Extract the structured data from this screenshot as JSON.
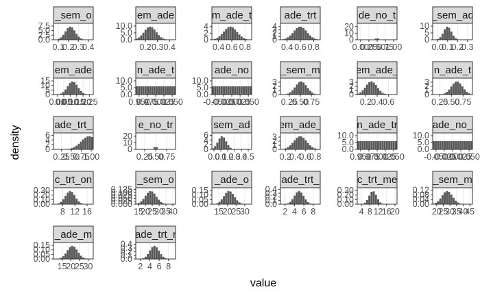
{
  "chart_data": {
    "type": "bar",
    "title": "",
    "xlabel": "value",
    "ylabel": "density",
    "grid": true,
    "colors": {
      "bar": "#595959",
      "strip_bg": "#d9d9d9",
      "panel_border": "#333333",
      "panel_bg": "#ffffff",
      "grid": "#ebebeb"
    },
    "panels": [
      {
        "strip": "_sem_o",
        "xticks": [
          "0.1",
          "0.2",
          "0.3",
          "0.4"
        ],
        "xlim": [
          0.05,
          0.45
        ],
        "yticks": [
          "0.0",
          "2.5",
          "5.0",
          "7.5"
        ],
        "ylim": [
          0,
          9
        ],
        "peak": 0.22,
        "spread": 0.05,
        "height": 0.8
      },
      {
        "strip": "em_ade",
        "xticks": [
          "0.2",
          "0.3",
          "0.4"
        ],
        "xlim": [
          0.12,
          0.45
        ],
        "yticks": [
          "0.0",
          "5.0",
          "10.0"
        ],
        "ylim": [
          0,
          12
        ],
        "peak": 0.24,
        "spread": 0.05,
        "height": 0.8
      },
      {
        "strip": "m_ade_t",
        "xticks": [
          "0.4",
          "0.6",
          "0.8"
        ],
        "xlim": [
          0.3,
          0.9
        ],
        "yticks": [
          "0",
          "2",
          "4"
        ],
        "ylim": [
          0,
          5
        ],
        "peak": 0.58,
        "spread": 0.1,
        "height": 0.8
      },
      {
        "strip": "ade_trt",
        "xticks": [
          "0.4",
          "0.6",
          "0.8"
        ],
        "xlim": [
          0.3,
          0.9
        ],
        "yticks": [
          "0",
          "1",
          "2",
          "3",
          "4"
        ],
        "ylim": [
          0,
          5
        ],
        "peak": 0.6,
        "spread": 0.1,
        "height": 0.8
      },
      {
        "strip": "de_no_t",
        "xticks": [
          "0.00",
          "0.25",
          "0.50",
          "0.75",
          "1.00"
        ],
        "xlim": [
          -0.1,
          1.1
        ],
        "yticks": [
          "0",
          "10",
          "20"
        ],
        "ylim": [
          0,
          25
        ],
        "peak": 0.5,
        "spread": 0.02,
        "height": 0.3
      },
      {
        "strip": "_sem_ad",
        "xticks": [
          "0.0",
          "0.1",
          "0.2",
          "0.3"
        ],
        "xlim": [
          -0.05,
          0.35
        ],
        "yticks": [
          "0",
          "5",
          "10"
        ],
        "ylim": [
          0,
          12
        ],
        "peak": 0.1,
        "spread": 0.04,
        "height": 0.8
      },
      {
        "strip": "em_ade",
        "xticks": [
          "0.00",
          "0.05",
          "0.10",
          "0.15",
          "0.20",
          "0.25"
        ],
        "xlim": [
          -0.03,
          0.28
        ],
        "yticks": [
          "0",
          "5",
          "10",
          "15"
        ],
        "ylim": [
          0,
          18
        ],
        "peak": 0.12,
        "spread": 0.04,
        "height": 0.8
      },
      {
        "strip": "n_ade_t",
        "xticks": [
          "0.950",
          "0.975",
          "1.000",
          "1.025",
          "1.050"
        ],
        "xlim": [
          0.94,
          1.06
        ],
        "yticks": [
          "0.0",
          "5.0",
          "10.0"
        ],
        "ylim": [
          0,
          12
        ],
        "peak": 1.0,
        "spread": 0.0,
        "height": 0.5
      },
      {
        "strip": "ade_no",
        "xticks": [
          "-0.050",
          "-0.025",
          "0.000",
          "0.025",
          "0.050"
        ],
        "xlim": [
          -0.06,
          0.06
        ],
        "yticks": [
          "0.0",
          "5.0",
          "10.0"
        ],
        "ylim": [
          0,
          12
        ],
        "peak": 0.0,
        "spread": 0.0,
        "height": 0.5
      },
      {
        "strip": "_sem_m",
        "xticks": [
          "0.25",
          "0.50",
          "0.75"
        ],
        "xlim": [
          0.05,
          0.95
        ],
        "yticks": [
          "0",
          "1",
          "2",
          "3"
        ],
        "ylim": [
          0,
          4
        ],
        "peak": 0.52,
        "spread": 0.13,
        "height": 0.8
      },
      {
        "strip": "em_ade_",
        "xticks": [
          "0.2",
          "0.4",
          "0.6"
        ],
        "xlim": [
          0.05,
          0.75
        ],
        "yticks": [
          "0",
          "1",
          "2",
          "3"
        ],
        "ylim": [
          0,
          4
        ],
        "peak": 0.3,
        "spread": 0.1,
        "height": 0.8
      },
      {
        "strip": "n_ade_t",
        "xticks": [
          "0.25",
          "0.50",
          "0.75"
        ],
        "xlim": [
          0.1,
          0.95
        ],
        "yticks": [
          "0",
          "1",
          "2",
          "3"
        ],
        "ylim": [
          0,
          4
        ],
        "peak": 0.62,
        "spread": 0.12,
        "height": 0.8
      },
      {
        "strip": "ade_trt_",
        "xticks": [
          "0.25",
          "0.50",
          "0.75",
          "1.00"
        ],
        "xlim": [
          0.05,
          1.05
        ],
        "yticks": [
          "0",
          "2",
          "4",
          "6"
        ],
        "ylim": [
          0,
          7
        ],
        "peak": 0.95,
        "spread": 0.2,
        "height": 0.8
      },
      {
        "strip": "e_no_tr",
        "xticks": [
          "0.25",
          "0.50",
          "0.75"
        ],
        "xlim": [
          0.05,
          0.95
        ],
        "yticks": [
          "0",
          "10",
          "20"
        ],
        "ylim": [
          0,
          25
        ],
        "peak": 0.5,
        "spread": 0.02,
        "height": 0.3
      },
      {
        "strip": "sem_ad",
        "xticks": [
          "0.0",
          "0.1",
          "0.2",
          "0.3",
          "0.4",
          "0.5"
        ],
        "xlim": [
          -0.03,
          0.55
        ],
        "yticks": [
          "0",
          "2",
          "4",
          "6"
        ],
        "ylim": [
          0,
          7
        ],
        "peak": 0.12,
        "spread": 0.06,
        "height": 0.8
      },
      {
        "strip": "em_ade_",
        "xticks": [
          "0.2",
          "0.4",
          "0.6",
          "0.8"
        ],
        "xlim": [
          0.1,
          0.9
        ],
        "yticks": [
          "0",
          "1",
          "2",
          "3"
        ],
        "ylim": [
          0,
          4
        ],
        "peak": 0.5,
        "spread": 0.13,
        "height": 0.8
      },
      {
        "strip": "n_ade_tr",
        "xticks": [
          "0.950",
          "0.975",
          "1.000",
          "1.025",
          "1.050"
        ],
        "xlim": [
          0.94,
          1.06
        ],
        "yticks": [
          "0.0",
          "5.0",
          "10.0"
        ],
        "ylim": [
          0,
          12
        ],
        "peak": 1.0,
        "spread": 0.0,
        "height": 0.5
      },
      {
        "strip": "ade_no_",
        "xticks": [
          "-0.050",
          "-0.025",
          "0.000",
          "0.025",
          "0.050"
        ],
        "xlim": [
          -0.06,
          0.06
        ],
        "yticks": [
          "0.0",
          "5.0",
          "10.0"
        ],
        "ylim": [
          0,
          12
        ],
        "peak": 0.0,
        "spread": 0.0,
        "height": 0.5
      },
      {
        "strip": "c_trt_on",
        "xticks": [
          "8",
          "12",
          "16"
        ],
        "xlim": [
          5,
          18
        ],
        "yticks": [
          "0.00",
          "0.10",
          "0.20",
          "0.30"
        ],
        "ylim": [
          0,
          0.36
        ],
        "peak": 10.5,
        "spread": 1.6,
        "height": 0.8
      },
      {
        "strip": "_sem_o",
        "xticks": [
          "15",
          "20",
          "25",
          "30",
          "35",
          "40"
        ],
        "xlim": [
          13,
          42
        ],
        "yticks": [
          "0.000",
          "0.025",
          "0.050",
          "0.075",
          "0.100",
          "0.125"
        ],
        "ylim": [
          0,
          0.14
        ],
        "peak": 24,
        "spread": 4,
        "height": 0.8
      },
      {
        "strip": "_ade_o",
        "xticks": [
          "15",
          "20",
          "25",
          "30"
        ],
        "xlim": [
          11,
          34
        ],
        "yticks": [
          "0.00",
          "0.05",
          "0.10",
          "0.15"
        ],
        "ylim": [
          0,
          0.18
        ],
        "peak": 21,
        "spread": 3,
        "height": 0.8
      },
      {
        "strip": "ade_trt_",
        "xticks": [
          "2",
          "4",
          "6",
          "8"
        ],
        "xlim": [
          1,
          9.5
        ],
        "yticks": [
          "0.0",
          "0.1",
          "0.2",
          "0.3",
          "0.4"
        ],
        "ylim": [
          0,
          0.45
        ],
        "peak": 5,
        "spread": 1,
        "height": 0.8
      },
      {
        "strip": "c_trt_me",
        "xticks": [
          "4",
          "8",
          "12",
          "16",
          "20"
        ],
        "xlim": [
          2,
          21
        ],
        "yticks": [
          "0.00",
          "0.10",
          "0.20",
          "0.30"
        ],
        "ylim": [
          0,
          0.36
        ],
        "peak": 9.5,
        "spread": 1.8,
        "height": 0.8
      },
      {
        "strip": "_sem_m",
        "xticks": [
          "20",
          "25",
          "30",
          "35",
          "40",
          "45"
        ],
        "xlim": [
          17,
          47
        ],
        "yticks": [
          "0.00",
          "0.04",
          "0.08",
          "0.12"
        ],
        "ylim": [
          0,
          0.14
        ],
        "peak": 28,
        "spread": 4,
        "height": 0.8
      },
      {
        "strip": "_ade_m",
        "xticks": [
          "15",
          "20",
          "25",
          "30"
        ],
        "xlim": [
          10,
          33
        ],
        "yticks": [
          "0.00",
          "0.05",
          "0.10",
          "0.15"
        ],
        "ylim": [
          0,
          0.18
        ],
        "peak": 21,
        "spread": 3,
        "height": 0.8
      },
      {
        "strip": "ade_trt_r",
        "xticks": [
          "2",
          "4",
          "6",
          "8"
        ],
        "xlim": [
          1,
          9.5
        ],
        "yticks": [
          "0.0",
          "0.1",
          "0.2",
          "0.3",
          "0.4"
        ],
        "ylim": [
          0,
          0.45
        ],
        "peak": 5,
        "spread": 1,
        "height": 0.8
      }
    ]
  }
}
